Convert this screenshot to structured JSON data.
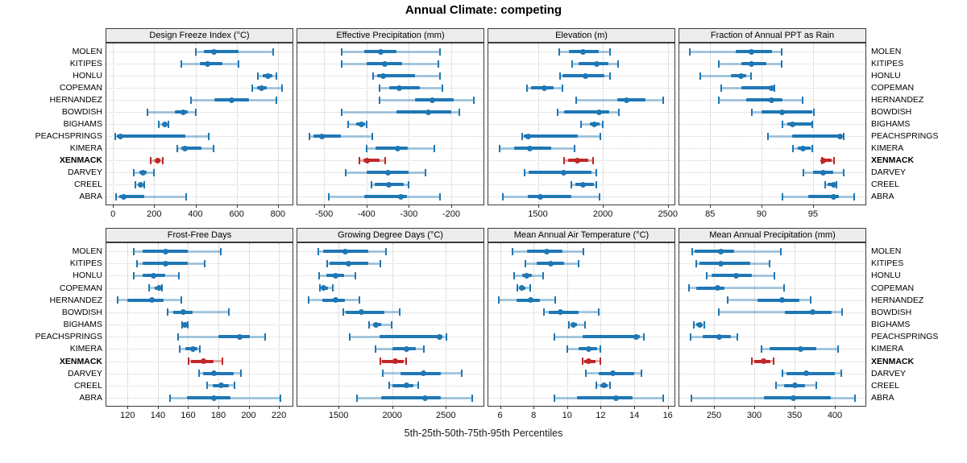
{
  "chart_data": {
    "type": "scatter",
    "subtype": "trellis-percentile-dotplot",
    "title": "Annual Climate: competing",
    "caption": "5th-25th-50th-75th-95th Percentiles",
    "percentile_labels": [
      "5th",
      "25th",
      "50th",
      "75th",
      "95th"
    ],
    "legend_position": "none",
    "grid": "dotted",
    "sites": [
      "MOLEN",
      "KITIPES",
      "HONLU",
      "COPEMAN",
      "HERNANDEZ",
      "BOWDISH",
      "BIGHAMS",
      "PEACHSPRINGS",
      "KIMERA",
      "XENMACK",
      "DARVEY",
      "CREEL",
      "ABRA"
    ],
    "highlight_site": "XENMACK",
    "colors": {
      "series": "#1f77b4",
      "highlight": "#c02727",
      "strip_bg": "#ececec",
      "gridline": "#c9c9c9"
    },
    "panels": [
      {
        "title": "Design Freeze Index (°C)",
        "domain": [
          -32,
          871
        ],
        "ticks": [
          0,
          200,
          400,
          600,
          800
        ],
        "values": [
          [
            400,
            440,
            490,
            610,
            780
          ],
          [
            330,
            420,
            460,
            530,
            610
          ],
          [
            700,
            725,
            750,
            775,
            795
          ],
          [
            675,
            700,
            720,
            745,
            820
          ],
          [
            375,
            490,
            575,
            660,
            795
          ],
          [
            165,
            300,
            340,
            365,
            405
          ],
          [
            220,
            240,
            250,
            260,
            270
          ],
          [
            10,
            18,
            35,
            350,
            465
          ],
          [
            310,
            330,
            350,
            430,
            490
          ],
          [
            180,
            205,
            215,
            230,
            245
          ],
          [
            100,
            130,
            147,
            165,
            200
          ],
          [
            108,
            125,
            134,
            143,
            152
          ],
          [
            13,
            30,
            52,
            150,
            356
          ]
        ]
      },
      {
        "title": "Effective Precipitation (mm)",
        "domain": [
          -563,
          -124
        ],
        "ticks": [
          -500,
          -400,
          -300,
          -200
        ],
        "values": [
          [
            -460,
            -405,
            -366,
            -330,
            -225
          ],
          [
            -460,
            -400,
            -357,
            -315,
            -230
          ],
          [
            -385,
            -375,
            -360,
            -285,
            -225
          ],
          [
            -370,
            -347,
            -323,
            -275,
            -220
          ],
          [
            -370,
            -285,
            -245,
            -195,
            -145
          ],
          [
            -460,
            -330,
            -255,
            -200,
            -180
          ],
          [
            -445,
            -425,
            -412,
            -404,
            -398
          ],
          [
            -535,
            -525,
            -505,
            -460,
            -385
          ],
          [
            -400,
            -378,
            -326,
            -303,
            -240
          ],
          [
            -417,
            -408,
            -398,
            -370,
            -355
          ],
          [
            -450,
            -400,
            -350,
            -300,
            -260
          ],
          [
            -390,
            -380,
            -347,
            -312,
            -300
          ],
          [
            -490,
            -405,
            -318,
            -305,
            -226
          ]
        ]
      },
      {
        "title": "Elevation (m)",
        "domain": [
          1119,
          2551
        ],
        "ticks": [
          1500,
          2000,
          2500
        ],
        "values": [
          [
            1660,
            1740,
            1850,
            1970,
            2060
          ],
          [
            1760,
            1810,
            1950,
            2040,
            2120
          ],
          [
            1665,
            1690,
            1865,
            2010,
            2060
          ],
          [
            1415,
            1450,
            1550,
            1620,
            1695
          ],
          [
            1790,
            2110,
            2180,
            2325,
            2470
          ],
          [
            1650,
            1700,
            1970,
            2050,
            2125
          ],
          [
            1830,
            1900,
            1935,
            1975,
            2005
          ],
          [
            1375,
            1390,
            1425,
            1805,
            1985
          ],
          [
            1205,
            1315,
            1435,
            1600,
            1785
          ],
          [
            1700,
            1730,
            1805,
            1890,
            1930
          ],
          [
            1395,
            1430,
            1700,
            1915,
            1950
          ],
          [
            1755,
            1790,
            1845,
            1930,
            1950
          ],
          [
            1225,
            1420,
            1520,
            1760,
            1975
          ]
        ]
      },
      {
        "title": "Fraction of Annual PPT as Rain",
        "domain": [
          82,
          100.1
        ],
        "ticks": [
          85,
          90,
          95
        ],
        "values": [
          [
            83,
            87.5,
            89,
            91,
            92
          ],
          [
            85.8,
            88,
            89,
            90.5,
            92
          ],
          [
            84,
            87,
            88,
            88.5,
            89
          ],
          [
            86,
            88,
            91,
            91.1,
            91.3
          ],
          [
            85.8,
            88.5,
            91,
            92,
            94
          ],
          [
            89,
            90,
            92,
            94.9,
            95.1
          ],
          [
            92,
            92.5,
            93,
            94.9,
            95
          ],
          [
            90.6,
            93,
            97.6,
            97.8,
            98
          ],
          [
            93,
            93.5,
            94,
            94.8,
            95
          ],
          [
            95.8,
            95.9,
            96,
            96.8,
            97.1
          ],
          [
            94,
            95,
            96,
            97,
            98
          ],
          [
            96.1,
            96.4,
            97,
            97.1,
            97.3
          ],
          [
            92,
            94.5,
            97,
            97.5,
            99
          ]
        ]
      },
      {
        "title": "Frost-Free Days",
        "domain": [
          106,
          229
        ],
        "ticks": [
          120,
          140,
          160,
          180,
          200,
          220
        ],
        "values": [
          [
            124,
            130,
            145,
            160,
            182
          ],
          [
            126,
            130,
            145,
            160,
            171
          ],
          [
            124,
            130,
            137,
            145,
            154
          ],
          [
            134,
            138,
            141,
            142,
            143
          ],
          [
            113,
            120,
            136,
            144,
            156
          ],
          [
            146,
            150,
            157,
            163,
            187
          ],
          [
            156,
            157,
            158,
            159,
            160
          ],
          [
            153,
            180,
            194,
            201,
            211
          ],
          [
            154,
            158,
            163,
            166,
            168
          ],
          [
            160,
            162,
            170,
            177,
            183
          ],
          [
            167,
            170,
            177,
            190,
            195
          ],
          [
            172,
            176,
            182,
            187,
            191
          ],
          [
            148,
            159,
            177,
            188,
            221
          ]
        ]
      },
      {
        "title": "Growing Degree Days (°C)",
        "domain": [
          1117,
          2850
        ],
        "ticks": [
          1500,
          2000,
          2500
        ],
        "values": [
          [
            1310,
            1360,
            1565,
            1780,
            1945
          ],
          [
            1390,
            1420,
            1590,
            1780,
            1890
          ],
          [
            1315,
            1390,
            1475,
            1550,
            1660
          ],
          [
            1320,
            1340,
            1357,
            1400,
            1450
          ],
          [
            1215,
            1350,
            1470,
            1560,
            1700
          ],
          [
            1540,
            1570,
            1715,
            1925,
            2070
          ],
          [
            1780,
            1820,
            1845,
            1900,
            2000
          ],
          [
            1600,
            1880,
            2440,
            2470,
            2505
          ],
          [
            1840,
            2000,
            2130,
            2220,
            2300
          ],
          [
            1885,
            1905,
            2030,
            2110,
            2135
          ],
          [
            1905,
            2075,
            2290,
            2455,
            2650
          ],
          [
            1970,
            2000,
            2130,
            2195,
            2245
          ],
          [
            1665,
            1900,
            2305,
            2455,
            2750
          ]
        ]
      },
      {
        "title": "Mean Annual Air Temperature (°C)",
        "domain": [
          5.3,
          16.4
        ],
        "ticks": [
          6,
          8,
          10,
          12,
          14,
          16
        ],
        "values": [
          [
            6.7,
            7.6,
            8.8,
            9.7,
            11.0
          ],
          [
            7.5,
            8.2,
            9.0,
            9.8,
            10.7
          ],
          [
            6.8,
            7.3,
            7.6,
            7.9,
            8.6
          ],
          [
            7.0,
            7.2,
            7.3,
            7.5,
            7.8
          ],
          [
            5.9,
            7.0,
            7.8,
            8.4,
            9.3
          ],
          [
            8.6,
            8.9,
            9.6,
            10.7,
            11.9
          ],
          [
            10.1,
            10.25,
            10.35,
            10.6,
            11.1
          ],
          [
            9.2,
            10.9,
            14.1,
            14.35,
            14.6
          ],
          [
            10.0,
            10.7,
            11.3,
            11.8,
            12.0
          ],
          [
            10.9,
            11.0,
            11.3,
            11.7,
            12.0
          ],
          [
            11.1,
            11.9,
            12.7,
            14.0,
            14.45
          ],
          [
            11.7,
            12.0,
            12.2,
            12.4,
            12.6
          ],
          [
            9.2,
            10.6,
            12.9,
            13.9,
            15.75
          ]
        ]
      },
      {
        "title": "Mean Annual Precipitation (mm)",
        "domain": [
          207,
          438
        ],
        "ticks": [
          250,
          300,
          350,
          400
        ],
        "values": [
          [
            222,
            226,
            258,
            275,
            333
          ],
          [
            227,
            232,
            258,
            295,
            319
          ],
          [
            240,
            247,
            277,
            297,
            325
          ],
          [
            218,
            228,
            254,
            263,
            337
          ],
          [
            266,
            304,
            334,
            356,
            370
          ],
          [
            255,
            338,
            372,
            396,
            409
          ],
          [
            224,
            228,
            232,
            235,
            238
          ],
          [
            220,
            236,
            256,
            271,
            279
          ],
          [
            308,
            319,
            357,
            377,
            404
          ],
          [
            296,
            300,
            311,
            320,
            324
          ],
          [
            334,
            340,
            364,
            400,
            408
          ],
          [
            326,
            337,
            350,
            363,
            377
          ],
          [
            221,
            312,
            348,
            395,
            425
          ]
        ]
      }
    ]
  }
}
